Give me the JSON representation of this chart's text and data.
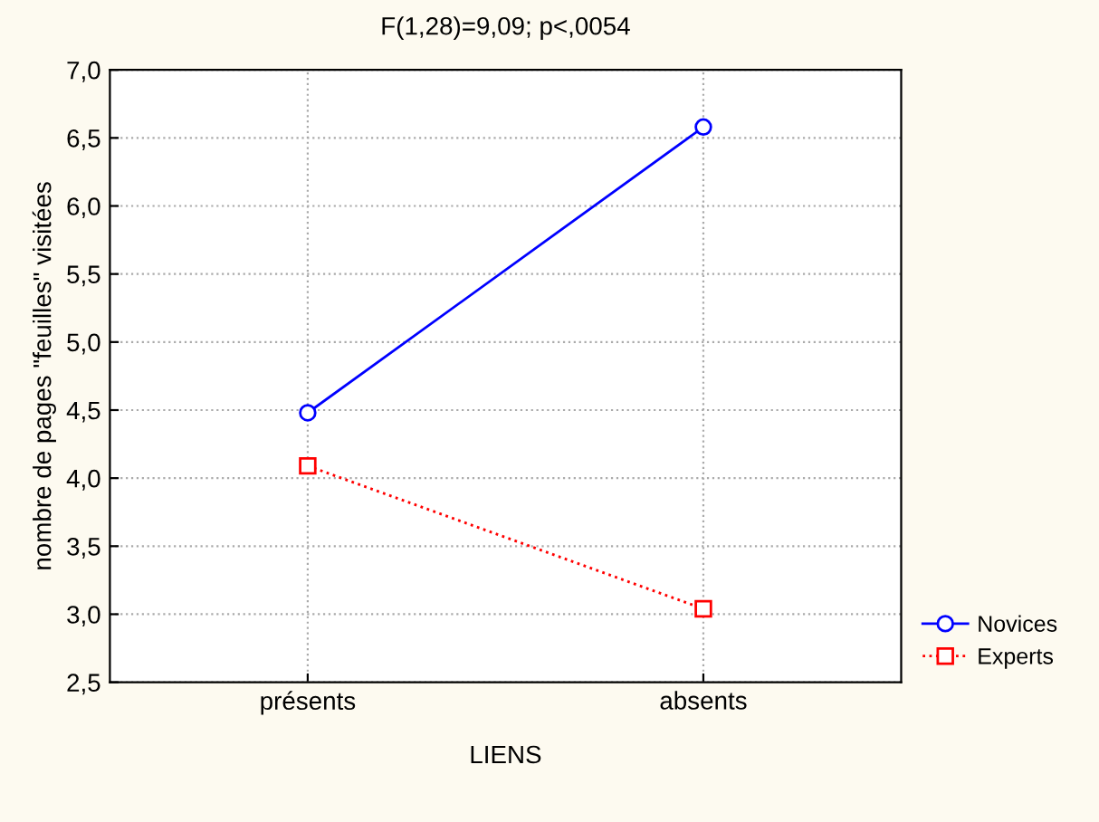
{
  "chart_data": {
    "type": "line",
    "title": "F(1,28)=9,09; p<,0054",
    "xlabel": "LIENS",
    "ylabel": "nombre de pages \"feuilles\" visitées",
    "categories": [
      "présents",
      "absents"
    ],
    "series": [
      {
        "name": "Novices",
        "color": "#0000ff",
        "values": [
          4.48,
          6.58
        ],
        "marker": "circle",
        "line_style": "solid"
      },
      {
        "name": "Experts",
        "color": "#ff0000",
        "values": [
          4.09,
          3.04
        ],
        "marker": "square",
        "line_style": "dotted"
      }
    ],
    "ylim": [
      2.5,
      7.0
    ],
    "yticks": [
      {
        "value": 2.5,
        "label": "2,5"
      },
      {
        "value": 3.0,
        "label": "3,0"
      },
      {
        "value": 3.5,
        "label": "3,5"
      },
      {
        "value": 4.0,
        "label": "4,0"
      },
      {
        "value": 4.5,
        "label": "4,5"
      },
      {
        "value": 5.0,
        "label": "5,0"
      },
      {
        "value": 5.5,
        "label": "5,5"
      },
      {
        "value": 6.0,
        "label": "6,0"
      },
      {
        "value": 6.5,
        "label": "6,5"
      },
      {
        "value": 7.0,
        "label": "7,0"
      }
    ],
    "grid": true,
    "legend": "bottom right"
  }
}
